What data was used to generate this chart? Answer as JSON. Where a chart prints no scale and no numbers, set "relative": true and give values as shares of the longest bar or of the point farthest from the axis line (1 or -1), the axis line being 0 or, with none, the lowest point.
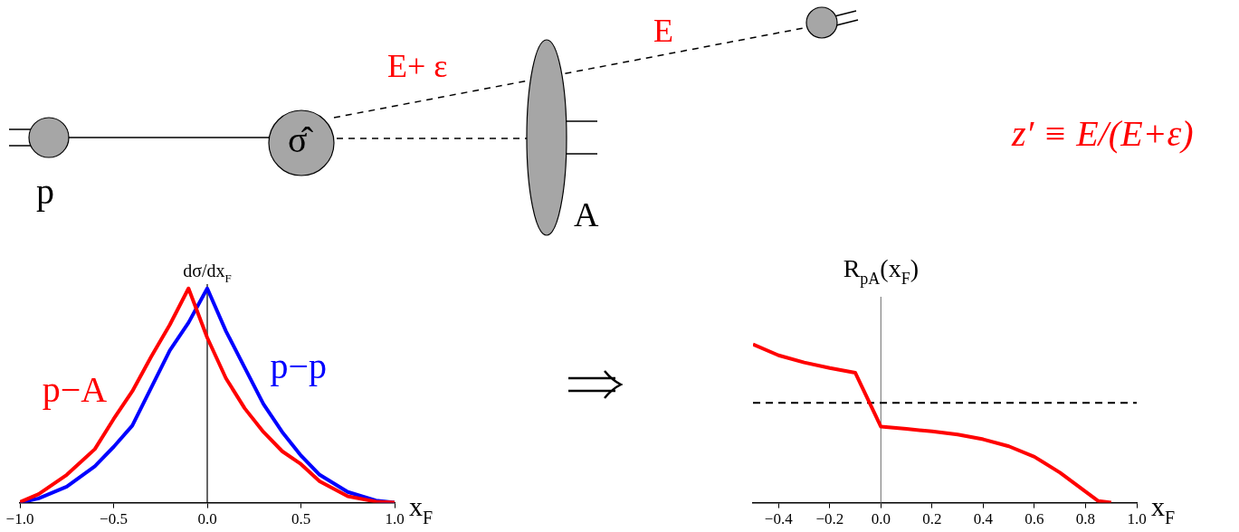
{
  "chart_data": [
    {
      "type": "other",
      "annotations": [
        "p",
        "σ̂",
        "E+ ε",
        "E",
        "A",
        "z′ ≡ E/(E+ε)"
      ]
    },
    {
      "type": "line",
      "relative": true,
      "ylabel": "dσ/dx$_{F}$",
      "xlabel": "x$_{F}$",
      "xlim": [
        -1,
        1
      ],
      "xticks": [
        {
          "value": -1,
          "label": "−1.0"
        },
        {
          "value": -0.5,
          "label": "−0.5"
        },
        {
          "value": 0,
          "label": "0.0"
        },
        0.5,
        {
          "value": 1,
          "label": "1.0"
        }
      ],
      "legend": false,
      "grid": false,
      "ref_lines": [
        {
          "axis": "x",
          "value": 0,
          "color": "#000000",
          "line_style": "solid"
        }
      ],
      "series": [
        {
          "name": "p−A",
          "color": "#ff0000",
          "x": [
            -1,
            -0.9,
            -0.75,
            -0.6,
            -0.5,
            -0.4,
            -0.3,
            -0.2,
            -0.1,
            0,
            0.1,
            0.2,
            0.3,
            0.4,
            0.5,
            0.6,
            0.75,
            0.9,
            1
          ],
          "values": [
            0.003,
            0.04,
            0.13,
            0.25,
            0.39,
            0.52,
            0.68,
            0.83,
            1,
            0.77,
            0.58,
            0.44,
            0.33,
            0.24,
            0.18,
            0.1,
            0.03,
            0.005,
            0
          ]
        },
        {
          "name": "p−p",
          "color": "#0000ff",
          "x": [
            -1,
            -0.9,
            -0.75,
            -0.6,
            -0.5,
            -0.4,
            -0.2,
            -0.1,
            0,
            0.1,
            0.2,
            0.3,
            0.4,
            0.5,
            0.6,
            0.75,
            0.9,
            1
          ],
          "values": [
            0,
            0.02,
            0.075,
            0.17,
            0.26,
            0.36,
            0.71,
            0.84,
            1,
            0.8,
            0.63,
            0.46,
            0.33,
            0.22,
            0.13,
            0.05,
            0.01,
            0
          ]
        }
      ]
    },
    {
      "type": "line",
      "relative": true,
      "ylabel": "R$_{pA}$(x$_{F}$)",
      "xlabel": "x$_{F}$",
      "xlim": [
        -0.5,
        1
      ],
      "xticks": [
        {
          "value": -0.4,
          "label": "−0.4"
        },
        {
          "value": -0.2,
          "label": "−0.2"
        },
        {
          "value": 0,
          "label": "0.0"
        },
        0.2,
        0.4,
        0.6,
        0.8,
        {
          "value": 1,
          "label": "1.0"
        }
      ],
      "legend": false,
      "grid": false,
      "ref_lines": [
        {
          "axis": "x",
          "value": 0,
          "color": "#808080",
          "line_style": "solid"
        },
        {
          "axis": "y",
          "value": 0.63,
          "color": "#000000",
          "line_style": "dashed"
        }
      ],
      "series": [
        {
          "color": "#ff0000",
          "x": [
            -0.5,
            -0.4,
            -0.3,
            -0.2,
            -0.1,
            0,
            0.1,
            0.2,
            0.3,
            0.4,
            0.5,
            0.6,
            0.7,
            0.8,
            0.85,
            0.9
          ],
          "values": [
            1,
            0.93,
            0.885,
            0.85,
            0.82,
            0.48,
            0.466,
            0.45,
            0.43,
            0.4,
            0.356,
            0.29,
            0.19,
            0.07,
            0.01,
            0
          ]
        }
      ]
    }
  ]
}
